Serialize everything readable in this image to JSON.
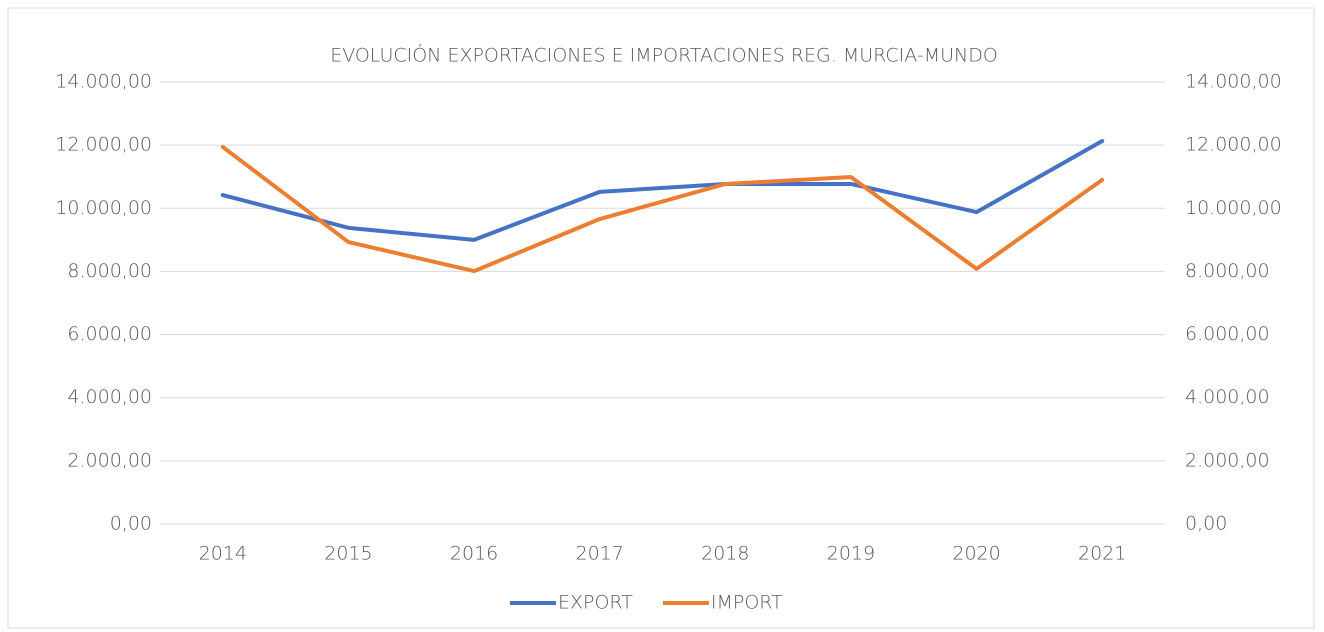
{
  "chart_data": {
    "type": "line",
    "title": "EVOLUCIÓN EXPORTACIONES E IMPORTACIONES REG. MURCIA-MUNDO",
    "categories": [
      "2014",
      "2015",
      "2016",
      "2017",
      "2018",
      "2019",
      "2020",
      "2021"
    ],
    "series": [
      {
        "name": "EXPORT",
        "color": "#4472c4",
        "values": [
          10420,
          9380,
          9000,
          10520,
          10770,
          10770,
          9880,
          12130
        ]
      },
      {
        "name": "IMPORT",
        "color": "#ed7d31",
        "axis": "y2",
        "values": [
          11940,
          8930,
          8010,
          9660,
          10770,
          10990,
          8080,
          10900
        ]
      }
    ],
    "ylim": [
      0,
      14000
    ],
    "yticks": [
      {
        "value": 0,
        "label": "0,00"
      },
      {
        "value": 2000,
        "label": "2.000,00"
      },
      {
        "value": 4000,
        "label": "4.000,00"
      },
      {
        "value": 6000,
        "label": "6.000,00"
      },
      {
        "value": 8000,
        "label": "8.000,00"
      },
      {
        "value": 10000,
        "label": "10.000,00"
      },
      {
        "value": 12000,
        "label": "12.000,00"
      },
      {
        "value": 14000,
        "label": "14.000,00"
      }
    ],
    "y2lim": [
      0,
      14000
    ],
    "y2ticks": [
      {
        "value": 0,
        "label": "0,00"
      },
      {
        "value": 2000,
        "label": "2.000,00"
      },
      {
        "value": 4000,
        "label": "4.000,00"
      },
      {
        "value": 6000,
        "label": "6.000,00"
      },
      {
        "value": 8000,
        "label": "8.000,00"
      },
      {
        "value": 10000,
        "label": "10.000,00"
      },
      {
        "value": 12000,
        "label": "12.000,00"
      },
      {
        "value": 14000,
        "label": "14.000,00"
      }
    ],
    "grid": true,
    "legend": "bottom"
  }
}
